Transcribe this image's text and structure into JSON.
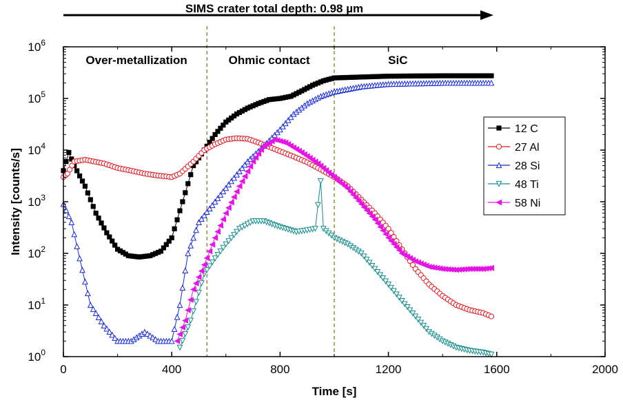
{
  "chart_data": {
    "type": "line",
    "title": "",
    "xlabel": "Time [s]",
    "ylabel": "Intensity [counts/s]",
    "xlim": [
      0,
      2000
    ],
    "ylim": [
      1,
      1000000
    ],
    "y_scale": "log",
    "x_ticks": [
      0,
      400,
      800,
      1200,
      1600,
      2000
    ],
    "y_ticks": [
      {
        "value": 1,
        "base": "10",
        "exp": "0"
      },
      {
        "value": 10,
        "base": "10",
        "exp": "1"
      },
      {
        "value": 100,
        "base": "10",
        "exp": "2"
      },
      {
        "value": 1000,
        "base": "10",
        "exp": "3"
      },
      {
        "value": 10000,
        "base": "10",
        "exp": "4"
      },
      {
        "value": 100000,
        "base": "10",
        "exp": "5"
      },
      {
        "value": 1000000,
        "base": "10",
        "exp": "6"
      }
    ],
    "grid": false,
    "legend_position": "right",
    "depth_arrow": {
      "label": "SIMS crater total depth: 0.98 µm",
      "x_start": 0,
      "x_end": 2000
    },
    "boundaries": [
      530,
      1000
    ],
    "regions": [
      {
        "label": "Over-metallization",
        "x": 270
      },
      {
        "label": "Ohmic contact",
        "x": 760
      },
      {
        "label": "SiC",
        "x": 1235
      }
    ],
    "series": [
      {
        "name": "12 C",
        "color": "#000000",
        "marker": "square",
        "points": [
          [
            0,
            4000
          ],
          [
            20,
            9000
          ],
          [
            40,
            5000
          ],
          [
            80,
            2000
          ],
          [
            120,
            600
          ],
          [
            160,
            250
          ],
          [
            200,
            120
          ],
          [
            240,
            90
          ],
          [
            280,
            85
          ],
          [
            320,
            90
          ],
          [
            360,
            110
          ],
          [
            400,
            200
          ],
          [
            440,
            1000
          ],
          [
            480,
            5000
          ],
          [
            520,
            10000
          ],
          [
            560,
            20000
          ],
          [
            600,
            35000
          ],
          [
            640,
            50000
          ],
          [
            680,
            65000
          ],
          [
            720,
            80000
          ],
          [
            760,
            95000
          ],
          [
            800,
            100000
          ],
          [
            840,
            110000
          ],
          [
            880,
            140000
          ],
          [
            920,
            180000
          ],
          [
            960,
            220000
          ],
          [
            1000,
            250000
          ],
          [
            1100,
            260000
          ],
          [
            1200,
            270000
          ],
          [
            1400,
            275000
          ],
          [
            1580,
            275000
          ]
        ]
      },
      {
        "name": "27 Al",
        "color": "#e8141e",
        "marker": "circle",
        "points": [
          [
            0,
            3000
          ],
          [
            15,
            3500
          ],
          [
            40,
            6000
          ],
          [
            80,
            6500
          ],
          [
            150,
            5500
          ],
          [
            200,
            4500
          ],
          [
            250,
            4000
          ],
          [
            300,
            3500
          ],
          [
            350,
            3200
          ],
          [
            400,
            3000
          ],
          [
            430,
            3500
          ],
          [
            480,
            6000
          ],
          [
            520,
            10000
          ],
          [
            560,
            13000
          ],
          [
            600,
            16000
          ],
          [
            640,
            17000
          ],
          [
            680,
            16500
          ],
          [
            720,
            14000
          ],
          [
            760,
            11500
          ],
          [
            800,
            9500
          ],
          [
            850,
            7500
          ],
          [
            900,
            5800
          ],
          [
            950,
            4200
          ],
          [
            1000,
            3000
          ],
          [
            1050,
            2000
          ],
          [
            1100,
            1100
          ],
          [
            1150,
            600
          ],
          [
            1200,
            300
          ],
          [
            1250,
            120
          ],
          [
            1300,
            50
          ],
          [
            1350,
            25
          ],
          [
            1400,
            15
          ],
          [
            1450,
            10
          ],
          [
            1500,
            8
          ],
          [
            1550,
            7
          ],
          [
            1580,
            6
          ]
        ]
      },
      {
        "name": "28 Si",
        "color": "#1428dc",
        "marker": "triangle-up",
        "points": [
          [
            0,
            900
          ],
          [
            30,
            400
          ],
          [
            60,
            80
          ],
          [
            100,
            10
          ],
          [
            150,
            4
          ],
          [
            200,
            2
          ],
          [
            250,
            2
          ],
          [
            300,
            3
          ],
          [
            350,
            2
          ],
          [
            400,
            2
          ],
          [
            430,
            10
          ],
          [
            460,
            100
          ],
          [
            500,
            400
          ],
          [
            560,
            1000
          ],
          [
            620,
            2500
          ],
          [
            680,
            6000
          ],
          [
            740,
            12000
          ],
          [
            800,
            25000
          ],
          [
            850,
            50000
          ],
          [
            900,
            80000
          ],
          [
            950,
            110000
          ],
          [
            1000,
            135000
          ],
          [
            1100,
            170000
          ],
          [
            1200,
            190000
          ],
          [
            1400,
            200000
          ],
          [
            1580,
            200000
          ]
        ]
      },
      {
        "name": "48 Ti",
        "color": "#148c8c",
        "marker": "triangle-down",
        "points": [
          [
            430,
            1.5
          ],
          [
            470,
            5
          ],
          [
            520,
            40
          ],
          [
            560,
            80
          ],
          [
            600,
            150
          ],
          [
            650,
            300
          ],
          [
            700,
            420
          ],
          [
            740,
            420
          ],
          [
            780,
            350
          ],
          [
            820,
            300
          ],
          [
            860,
            260
          ],
          [
            900,
            280
          ],
          [
            930,
            300
          ],
          [
            950,
            2500
          ],
          [
            960,
            300
          ],
          [
            1000,
            200
          ],
          [
            1050,
            150
          ],
          [
            1100,
            100
          ],
          [
            1150,
            50
          ],
          [
            1200,
            25
          ],
          [
            1250,
            12
          ],
          [
            1300,
            6
          ],
          [
            1350,
            3
          ],
          [
            1400,
            2
          ],
          [
            1450,
            1.5
          ],
          [
            1500,
            1.3
          ],
          [
            1550,
            1.2
          ],
          [
            1580,
            1.1
          ]
        ]
      },
      {
        "name": "58 Ni",
        "color": "#e614e6",
        "marker": "triangle-left",
        "points": [
          [
            420,
            2
          ],
          [
            450,
            5
          ],
          [
            480,
            20
          ],
          [
            520,
            60
          ],
          [
            560,
            200
          ],
          [
            600,
            600
          ],
          [
            650,
            2000
          ],
          [
            700,
            6000
          ],
          [
            740,
            12000
          ],
          [
            780,
            16000
          ],
          [
            820,
            14000
          ],
          [
            880,
            9000
          ],
          [
            940,
            5500
          ],
          [
            1000,
            3000
          ],
          [
            1050,
            1800
          ],
          [
            1100,
            900
          ],
          [
            1150,
            450
          ],
          [
            1200,
            200
          ],
          [
            1250,
            100
          ],
          [
            1300,
            70
          ],
          [
            1350,
            55
          ],
          [
            1400,
            50
          ],
          [
            1450,
            48
          ],
          [
            1500,
            50
          ],
          [
            1550,
            50
          ],
          [
            1580,
            52
          ]
        ]
      }
    ]
  }
}
